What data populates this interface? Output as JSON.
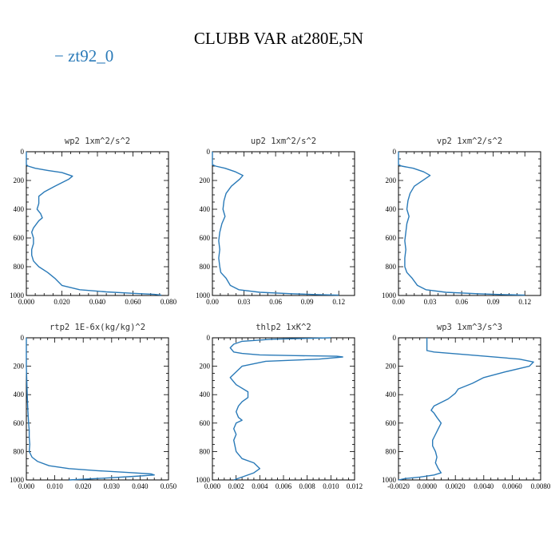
{
  "figure": {
    "title": "CLUBB VAR at280E,5N",
    "legend_label": "zt92_0",
    "series_color": "#2a7ab8"
  },
  "chart_data": [
    {
      "type": "line",
      "title": "wp2  1xm^2/s^2",
      "xlim": [
        0,
        0.08
      ],
      "ylim": [
        1000,
        0
      ],
      "xticks": [
        0,
        0.02,
        0.04,
        0.06,
        0.08
      ],
      "xtick_labels": [
        "0.000",
        "0.020",
        "0.040",
        "0.060",
        "0.080"
      ],
      "yticks": [
        0,
        200,
        400,
        600,
        800,
        1000
      ],
      "ytick_labels": [
        "0",
        "200",
        "400",
        "600",
        "800",
        "1000"
      ],
      "series": [
        {
          "x": [
            0,
            0,
            0.001,
            0.005,
            0.012,
            0.02,
            0.026,
            0.024,
            0.016,
            0.01,
            0.007,
            0.007,
            0.006,
            0.008,
            0.009,
            0.007,
            0.004,
            0.003,
            0.004,
            0.004,
            0.003,
            0.003,
            0.004,
            0.007,
            0.012,
            0.016,
            0.02,
            0.03,
            0.045,
            0.06,
            0.072,
            0.076
          ],
          "y": [
            0,
            90,
            100,
            115,
            130,
            145,
            170,
            190,
            240,
            280,
            310,
            360,
            400,
            430,
            460,
            480,
            530,
            560,
            600,
            640,
            680,
            720,
            760,
            800,
            840,
            880,
            930,
            960,
            975,
            985,
            992,
            998
          ]
        }
      ]
    },
    {
      "type": "line",
      "title": "up2  1xm^2/s^2",
      "xlim": [
        0,
        0.135
      ],
      "ylim": [
        1000,
        0
      ],
      "xticks": [
        0,
        0.03,
        0.06,
        0.09,
        0.12
      ],
      "xtick_labels": [
        "0.00",
        "0.03",
        "0.06",
        "0.09",
        "0.12"
      ],
      "yticks": [
        0,
        200,
        400,
        600,
        800,
        1000
      ],
      "ytick_labels": [
        "0",
        "200",
        "400",
        "600",
        "800",
        "1000"
      ],
      "series": [
        {
          "x": [
            0,
            0,
            0.003,
            0.012,
            0.022,
            0.029,
            0.026,
            0.018,
            0.013,
            0.011,
            0.01,
            0.012,
            0.009,
            0.007,
            0.006,
            0.007,
            0.006,
            0.007,
            0.008,
            0.013,
            0.017,
            0.025,
            0.045,
            0.075,
            0.1,
            0.12
          ],
          "y": [
            0,
            90,
            100,
            115,
            140,
            165,
            190,
            240,
            290,
            340,
            400,
            450,
            500,
            560,
            620,
            680,
            740,
            800,
            840,
            880,
            930,
            960,
            978,
            988,
            994,
            998
          ]
        }
      ]
    },
    {
      "type": "line",
      "title": "vp2  1xm^2/s^2",
      "xlim": [
        0,
        0.135
      ],
      "ylim": [
        1000,
        0
      ],
      "xticks": [
        0,
        0.03,
        0.06,
        0.09,
        0.12
      ],
      "xtick_labels": [
        "0.00",
        "0.03",
        "0.06",
        "0.09",
        "0.12"
      ],
      "yticks": [
        0,
        200,
        400,
        600,
        800,
        1000
      ],
      "ytick_labels": [
        "0",
        "200",
        "400",
        "600",
        "800",
        "1000"
      ],
      "series": [
        {
          "x": [
            0,
            0,
            0.003,
            0.014,
            0.024,
            0.03,
            0.025,
            0.015,
            0.011,
            0.009,
            0.008,
            0.01,
            0.008,
            0.007,
            0.006,
            0.007,
            0.006,
            0.006,
            0.008,
            0.013,
            0.018,
            0.026,
            0.045,
            0.075,
            0.1,
            0.12
          ],
          "y": [
            0,
            90,
            100,
            115,
            140,
            165,
            190,
            240,
            290,
            340,
            400,
            450,
            500,
            560,
            620,
            680,
            740,
            800,
            840,
            880,
            930,
            960,
            978,
            988,
            994,
            998
          ]
        }
      ]
    },
    {
      "type": "line",
      "title": "rtp2  1E-6x(kg/kg)^2",
      "xlim": [
        0,
        0.05
      ],
      "ylim": [
        1000,
        0
      ],
      "xticks": [
        0,
        0.01,
        0.02,
        0.03,
        0.04,
        0.05
      ],
      "xtick_labels": [
        "0.000",
        "0.010",
        "0.020",
        "0.030",
        "0.040",
        "0.050"
      ],
      "yticks": [
        0,
        200,
        400,
        600,
        800,
        1000
      ],
      "ytick_labels": [
        "0",
        "200",
        "400",
        "600",
        "800",
        "1000"
      ],
      "series": [
        {
          "x": [
            0,
            0,
            0.0003,
            0.0005,
            0.0008,
            0.001,
            0.001,
            0.0012,
            0.001,
            0.002,
            0.004,
            0.008,
            0.015,
            0.025,
            0.036,
            0.044,
            0.045,
            0.038,
            0.025,
            0.015
          ],
          "y": [
            0,
            200,
            400,
            500,
            600,
            650,
            700,
            750,
            800,
            840,
            870,
            900,
            920,
            935,
            948,
            958,
            965,
            975,
            990,
            1000
          ]
        }
      ]
    },
    {
      "type": "line",
      "title": "thlp2  1xK^2",
      "xlim": [
        0,
        0.012
      ],
      "ylim": [
        1000,
        0
      ],
      "xticks": [
        0,
        0.002,
        0.004,
        0.006,
        0.008,
        0.01,
        0.012
      ],
      "xtick_labels": [
        "0.000",
        "0.002",
        "0.004",
        "0.006",
        "0.008",
        "0.010",
        "0.012"
      ],
      "yticks": [
        0,
        200,
        400,
        600,
        800,
        1000
      ],
      "ytick_labels": [
        "0",
        "200",
        "400",
        "600",
        "800",
        "1000"
      ],
      "series": [
        {
          "x": [
            0.01,
            0.005,
            0.0025,
            0.0018,
            0.0015,
            0.0018,
            0.0025,
            0.004,
            0.007,
            0.0105,
            0.011,
            0.009,
            0.0045,
            0.0025,
            0.0015,
            0.002,
            0.003,
            0.003,
            0.0025,
            0.0022,
            0.002,
            0.0022,
            0.0025,
            0.002,
            0.0018,
            0.002,
            0.0018,
            0.002,
            0.0025,
            0.0035,
            0.004,
            0.0035,
            0.0025,
            0.0018
          ],
          "y": [
            0,
            10,
            25,
            45,
            70,
            100,
            110,
            120,
            125,
            130,
            135,
            150,
            165,
            200,
            280,
            330,
            380,
            420,
            450,
            480,
            520,
            560,
            580,
            600,
            640,
            680,
            720,
            800,
            850,
            880,
            920,
            950,
            980,
            1000
          ]
        }
      ]
    },
    {
      "type": "line",
      "title": "wp3  1xm^3/s^3",
      "xlim": [
        -0.002,
        0.008
      ],
      "ylim": [
        1000,
        0
      ],
      "xticks": [
        -0.002,
        0,
        0.002,
        0.004,
        0.006,
        0.008
      ],
      "xtick_labels": [
        "-0.0020",
        "0.0000",
        "0.0020",
        "0.0040",
        "0.0060",
        "0.0080"
      ],
      "yticks": [
        0,
        200,
        400,
        600,
        800,
        1000
      ],
      "ytick_labels": [
        "0",
        "200",
        "400",
        "600",
        "800",
        "1000"
      ],
      "series": [
        {
          "x": [
            0,
            0,
            0.0005,
            0.003,
            0.0065,
            0.0075,
            0.0072,
            0.0055,
            0.004,
            0.0032,
            0.0022,
            0.002,
            0.0015,
            0.0005,
            0.0003,
            0.0005,
            0.0007,
            0.001,
            0.0008,
            0.0006,
            0.0004,
            0.0004,
            0.0006,
            0.0007,
            0.0006,
            0.0008,
            0.001,
            0.0005,
            -0.0005,
            -0.0015,
            -0.002
          ],
          "y": [
            0,
            90,
            100,
            120,
            150,
            170,
            200,
            240,
            280,
            320,
            360,
            390,
            430,
            480,
            510,
            530,
            560,
            600,
            640,
            680,
            720,
            760,
            800,
            840,
            880,
            920,
            950,
            965,
            980,
            990,
            1000
          ]
        }
      ]
    }
  ]
}
